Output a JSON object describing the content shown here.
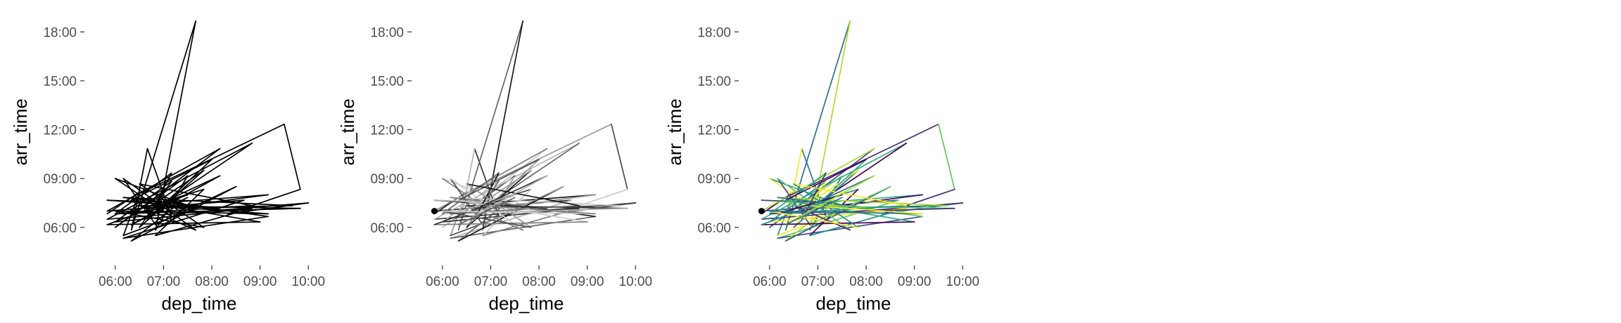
{
  "chart_data": [
    {
      "type": "line",
      "xlabel": "dep_time",
      "ylabel": "arr_time",
      "x_ticks": [
        "06:00",
        "07:00",
        "08:00",
        "09:00",
        "10:00"
      ],
      "y_ticks": [
        "06:00",
        "09:00",
        "12:00",
        "15:00",
        "18:00"
      ],
      "xlim": [
        "05:40",
        "10:05"
      ],
      "ylim": [
        "05:00",
        "18:40"
      ],
      "grid": false,
      "legend": "none",
      "color_mode": "black",
      "marker": null,
      "path": [
        [
          "05:50",
          "06:50"
        ],
        [
          "06:30",
          "08:10"
        ],
        [
          "06:10",
          "05:30"
        ],
        [
          "07:40",
          "07:10"
        ],
        [
          "06:00",
          "09:00"
        ],
        [
          "07:10",
          "06:40"
        ],
        [
          "06:40",
          "10:50"
        ],
        [
          "06:20",
          "05:50"
        ],
        [
          "07:40",
          "18:40"
        ],
        [
          "06:50",
          "05:50"
        ],
        [
          "07:30",
          "09:10"
        ],
        [
          "06:00",
          "06:00"
        ],
        [
          "08:10",
          "10:50"
        ],
        [
          "05:50",
          "07:00"
        ],
        [
          "08:40",
          "07:40"
        ],
        [
          "06:10",
          "05:20"
        ],
        [
          "09:10",
          "06:40"
        ],
        [
          "06:20",
          "07:50"
        ],
        [
          "09:30",
          "12:20"
        ],
        [
          "09:50",
          "08:20"
        ],
        [
          "08:20",
          "06:50"
        ],
        [
          "10:00",
          "07:30"
        ],
        [
          "05:50",
          "06:30"
        ],
        [
          "08:50",
          "11:10"
        ],
        [
          "07:00",
          "07:30"
        ],
        [
          "09:10",
          "08:00"
        ],
        [
          "06:10",
          "06:50"
        ],
        [
          "07:50",
          "08:20"
        ],
        [
          "06:50",
          "05:30"
        ],
        [
          "08:50",
          "07:10"
        ],
        [
          "06:00",
          "06:20"
        ],
        [
          "07:10",
          "08:50"
        ],
        [
          "06:30",
          "06:00"
        ],
        [
          "07:50",
          "09:30"
        ],
        [
          "06:40",
          "07:10"
        ],
        [
          "09:40",
          "07:20"
        ],
        [
          "06:10",
          "07:50"
        ],
        [
          "08:10",
          "07:10"
        ],
        [
          "05:50",
          "07:40"
        ],
        [
          "07:20",
          "07:30"
        ],
        [
          "06:20",
          "05:10"
        ],
        [
          "08:30",
          "08:30"
        ],
        [
          "06:50",
          "06:10"
        ],
        [
          "06:10",
          "09:00"
        ],
        [
          "07:40",
          "05:50"
        ],
        [
          "06:30",
          "07:20"
        ],
        [
          "09:50",
          "07:10"
        ],
        [
          "06:00",
          "06:50"
        ],
        [
          "07:10",
          "09:20"
        ],
        [
          "06:40",
          "06:30"
        ],
        [
          "08:00",
          "10:10"
        ],
        [
          "06:20",
          "07:40"
        ],
        [
          "09:00",
          "06:20"
        ],
        [
          "05:50",
          "06:10"
        ],
        [
          "07:30",
          "08:00"
        ],
        [
          "06:10",
          "06:50"
        ],
        [
          "08:50",
          "07:20"
        ],
        [
          "06:30",
          "08:40"
        ],
        [
          "07:50",
          "06:00"
        ],
        [
          "06:00",
          "07:00"
        ],
        [
          "09:10",
          "06:50"
        ],
        [
          "06:50",
          "07:20"
        ],
        [
          "08:10",
          "09:10"
        ],
        [
          "06:20",
          "06:10"
        ],
        [
          "07:30",
          "07:50"
        ]
      ]
    },
    {
      "type": "line",
      "xlabel": "dep_time",
      "ylabel": "arr_time",
      "x_ticks": [
        "06:00",
        "07:00",
        "08:00",
        "09:00",
        "10:00"
      ],
      "y_ticks": [
        "06:00",
        "09:00",
        "12:00",
        "15:00",
        "18:00"
      ],
      "xlim": [
        "05:40",
        "10:05"
      ],
      "ylim": [
        "05:00",
        "18:40"
      ],
      "grid": false,
      "legend": "none",
      "color_mode": "greyscale",
      "marker": [
        "05:50",
        "07:00"
      ],
      "path": [
        [
          "05:50",
          "06:50"
        ],
        [
          "06:30",
          "08:10"
        ],
        [
          "06:10",
          "05:30"
        ],
        [
          "07:40",
          "07:10"
        ],
        [
          "06:00",
          "09:00"
        ],
        [
          "07:10",
          "06:40"
        ],
        [
          "06:40",
          "10:50"
        ],
        [
          "06:20",
          "05:50"
        ],
        [
          "07:40",
          "18:40"
        ],
        [
          "06:50",
          "05:50"
        ],
        [
          "07:30",
          "09:10"
        ],
        [
          "06:00",
          "06:00"
        ],
        [
          "08:10",
          "10:50"
        ],
        [
          "05:50",
          "07:00"
        ],
        [
          "08:40",
          "07:40"
        ],
        [
          "06:10",
          "05:20"
        ],
        [
          "09:10",
          "06:40"
        ],
        [
          "06:20",
          "07:50"
        ],
        [
          "09:30",
          "12:20"
        ],
        [
          "09:50",
          "08:20"
        ],
        [
          "08:20",
          "06:50"
        ],
        [
          "10:00",
          "07:30"
        ],
        [
          "05:50",
          "06:30"
        ],
        [
          "08:50",
          "11:10"
        ],
        [
          "07:00",
          "07:30"
        ],
        [
          "09:10",
          "08:00"
        ],
        [
          "06:10",
          "06:50"
        ],
        [
          "07:50",
          "08:20"
        ],
        [
          "06:50",
          "05:30"
        ],
        [
          "08:50",
          "07:10"
        ],
        [
          "06:00",
          "06:20"
        ],
        [
          "07:10",
          "08:50"
        ],
        [
          "06:30",
          "06:00"
        ],
        [
          "07:50",
          "09:30"
        ],
        [
          "06:40",
          "07:10"
        ],
        [
          "09:40",
          "07:20"
        ],
        [
          "06:10",
          "07:50"
        ],
        [
          "08:10",
          "07:10"
        ],
        [
          "05:50",
          "07:40"
        ],
        [
          "07:20",
          "07:30"
        ],
        [
          "06:20",
          "05:10"
        ],
        [
          "08:30",
          "08:30"
        ],
        [
          "06:50",
          "06:10"
        ],
        [
          "06:10",
          "09:00"
        ],
        [
          "07:40",
          "05:50"
        ],
        [
          "06:30",
          "07:20"
        ],
        [
          "09:50",
          "07:10"
        ],
        [
          "06:00",
          "06:50"
        ],
        [
          "07:10",
          "09:20"
        ],
        [
          "06:40",
          "06:30"
        ],
        [
          "08:00",
          "10:10"
        ],
        [
          "06:20",
          "07:40"
        ],
        [
          "09:00",
          "06:20"
        ],
        [
          "05:50",
          "06:10"
        ],
        [
          "07:30",
          "08:00"
        ],
        [
          "06:10",
          "06:50"
        ],
        [
          "08:50",
          "07:20"
        ],
        [
          "06:30",
          "08:40"
        ],
        [
          "07:50",
          "06:00"
        ],
        [
          "06:00",
          "07:00"
        ],
        [
          "09:10",
          "06:50"
        ],
        [
          "06:50",
          "07:20"
        ],
        [
          "08:10",
          "09:10"
        ],
        [
          "06:20",
          "06:10"
        ],
        [
          "07:30",
          "07:50"
        ]
      ]
    },
    {
      "type": "line",
      "xlabel": "dep_time",
      "ylabel": "arr_time",
      "x_ticks": [
        "06:00",
        "07:00",
        "08:00",
        "09:00",
        "10:00"
      ],
      "y_ticks": [
        "06:00",
        "09:00",
        "12:00",
        "15:00",
        "18:00"
      ],
      "xlim": [
        "05:40",
        "10:05"
      ],
      "ylim": [
        "05:00",
        "18:40"
      ],
      "grid": false,
      "legend": "none",
      "color_mode": "viridis",
      "marker": [
        "05:50",
        "07:00"
      ],
      "path": [
        [
          "05:50",
          "06:50"
        ],
        [
          "06:30",
          "08:10"
        ],
        [
          "06:10",
          "05:30"
        ],
        [
          "07:40",
          "07:10"
        ],
        [
          "06:00",
          "09:00"
        ],
        [
          "07:10",
          "06:40"
        ],
        [
          "06:40",
          "10:50"
        ],
        [
          "06:20",
          "05:50"
        ],
        [
          "07:40",
          "18:40"
        ],
        [
          "06:50",
          "05:50"
        ],
        [
          "07:30",
          "09:10"
        ],
        [
          "06:00",
          "06:00"
        ],
        [
          "08:10",
          "10:50"
        ],
        [
          "05:50",
          "07:00"
        ],
        [
          "08:40",
          "07:40"
        ],
        [
          "06:10",
          "05:20"
        ],
        [
          "09:10",
          "06:40"
        ],
        [
          "06:20",
          "07:50"
        ],
        [
          "09:30",
          "12:20"
        ],
        [
          "09:50",
          "08:20"
        ],
        [
          "08:20",
          "06:50"
        ],
        [
          "10:00",
          "07:30"
        ],
        [
          "05:50",
          "06:30"
        ],
        [
          "08:50",
          "11:10"
        ],
        [
          "07:00",
          "07:30"
        ],
        [
          "09:10",
          "08:00"
        ],
        [
          "06:10",
          "06:50"
        ],
        [
          "07:50",
          "08:20"
        ],
        [
          "06:50",
          "05:30"
        ],
        [
          "08:50",
          "07:10"
        ],
        [
          "06:00",
          "06:20"
        ],
        [
          "07:10",
          "08:50"
        ],
        [
          "06:30",
          "06:00"
        ],
        [
          "07:50",
          "09:30"
        ],
        [
          "06:40",
          "07:10"
        ],
        [
          "09:40",
          "07:20"
        ],
        [
          "06:10",
          "07:50"
        ],
        [
          "08:10",
          "07:10"
        ],
        [
          "05:50",
          "07:40"
        ],
        [
          "07:20",
          "07:30"
        ],
        [
          "06:20",
          "05:10"
        ],
        [
          "08:30",
          "08:30"
        ],
        [
          "06:50",
          "06:10"
        ],
        [
          "06:10",
          "09:00"
        ],
        [
          "07:40",
          "05:50"
        ],
        [
          "06:30",
          "07:20"
        ],
        [
          "09:50",
          "07:10"
        ],
        [
          "06:00",
          "06:50"
        ],
        [
          "07:10",
          "09:20"
        ],
        [
          "06:40",
          "06:30"
        ],
        [
          "08:00",
          "10:10"
        ],
        [
          "06:20",
          "07:40"
        ],
        [
          "09:00",
          "06:20"
        ],
        [
          "05:50",
          "06:10"
        ],
        [
          "07:30",
          "08:00"
        ],
        [
          "06:10",
          "06:50"
        ],
        [
          "08:50",
          "07:20"
        ],
        [
          "06:30",
          "08:40"
        ],
        [
          "07:50",
          "06:00"
        ],
        [
          "06:00",
          "07:00"
        ],
        [
          "09:10",
          "06:50"
        ],
        [
          "06:50",
          "07:20"
        ],
        [
          "08:10",
          "09:10"
        ],
        [
          "06:20",
          "06:10"
        ],
        [
          "07:30",
          "07:50"
        ]
      ]
    }
  ],
  "palettes": {
    "black": [
      "#000000"
    ],
    "greyscale": [
      "#1a1a1a",
      "#333333",
      "#4d4d4d",
      "#666666",
      "#808080",
      "#999999",
      "#b3b3b3",
      "#cccccc"
    ],
    "viridis": [
      "#440154",
      "#472d7b",
      "#3b528b",
      "#2c728e",
      "#21918c",
      "#28ae80",
      "#5ec962",
      "#addc30",
      "#fde725"
    ]
  }
}
